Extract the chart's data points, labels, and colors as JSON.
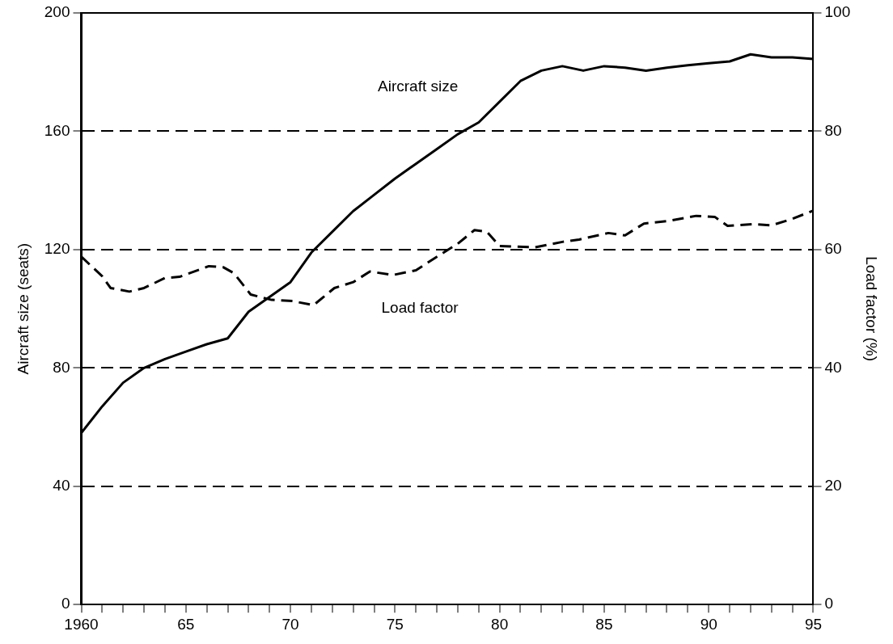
{
  "chart_data": {
    "type": "line",
    "xlabel": null,
    "ylabel": "Aircraft size (seats)",
    "y2label": "Load factor (%)",
    "xlim": [
      1960,
      1995
    ],
    "xticks": [
      {
        "value": 1960,
        "label": "1960"
      },
      {
        "value": 1961,
        "label": null
      },
      {
        "value": 1962,
        "label": null
      },
      {
        "value": 1963,
        "label": null
      },
      {
        "value": 1964,
        "label": null
      },
      {
        "value": 1965,
        "label": "65"
      },
      {
        "value": 1966,
        "label": null
      },
      {
        "value": 1967,
        "label": null
      },
      {
        "value": 1968,
        "label": null
      },
      {
        "value": 1969,
        "label": null
      },
      {
        "value": 1970,
        "label": "70"
      },
      {
        "value": 1971,
        "label": null
      },
      {
        "value": 1972,
        "label": null
      },
      {
        "value": 1973,
        "label": null
      },
      {
        "value": 1974,
        "label": null
      },
      {
        "value": 1975,
        "label": "75"
      },
      {
        "value": 1976,
        "label": null
      },
      {
        "value": 1977,
        "label": null
      },
      {
        "value": 1978,
        "label": null
      },
      {
        "value": 1979,
        "label": null
      },
      {
        "value": 1980,
        "label": "80"
      },
      {
        "value": 1981,
        "label": null
      },
      {
        "value": 1982,
        "label": null
      },
      {
        "value": 1983,
        "label": null
      },
      {
        "value": 1984,
        "label": null
      },
      {
        "value": 1985,
        "label": "85"
      },
      {
        "value": 1986,
        "label": null
      },
      {
        "value": 1987,
        "label": null
      },
      {
        "value": 1988,
        "label": null
      },
      {
        "value": 1989,
        "label": null
      },
      {
        "value": 1990,
        "label": "90"
      },
      {
        "value": 1991,
        "label": null
      },
      {
        "value": 1992,
        "label": null
      },
      {
        "value": 1993,
        "label": null
      },
      {
        "value": 1994,
        "label": null
      },
      {
        "value": 1995,
        "label": "95"
      }
    ],
    "ylim": [
      0,
      200
    ],
    "yticks": [
      0,
      40,
      80,
      120,
      160,
      200
    ],
    "y2lim": [
      0,
      100
    ],
    "y2ticks": [
      0,
      20,
      40,
      60,
      80,
      100
    ],
    "grid": "y",
    "legend": false,
    "marker": "none",
    "series": [
      {
        "name": "Aircraft size",
        "color": "#000000",
        "line_style": "solid",
        "axis": "y",
        "x": [
          1960,
          1961,
          1962,
          1963,
          1964,
          1965,
          1966,
          1967,
          1968,
          1969,
          1970,
          1971,
          1972,
          1973,
          1974,
          1975,
          1976,
          1977,
          1978,
          1979,
          1980,
          1981,
          1982,
          1983,
          1984,
          1985,
          1986,
          1987,
          1988,
          1989,
          1990,
          1991,
          1992,
          1993,
          1994,
          1995
        ],
        "values": [
          58,
          67,
          75,
          80,
          83,
          85.5,
          88,
          90,
          99,
          104,
          109,
          119,
          126,
          133,
          138.5,
          144,
          149,
          154,
          159,
          163,
          170,
          177,
          180.5,
          182,
          180.5,
          182,
          181.5,
          180.5,
          181.5,
          182.3,
          183,
          183.6,
          186,
          185,
          185,
          184.4
        ]
      },
      {
        "name": "Load factor",
        "color": "#000000",
        "line_style": "dashed",
        "axis": "y2",
        "x": [
          1960,
          1961,
          1961.4,
          1962.3,
          1963,
          1964,
          1964.7,
          1966.1,
          1966.8,
          1967.3,
          1968.1,
          1969.1,
          1970.1,
          1971.1,
          1972.1,
          1973,
          1973.8,
          1974.9,
          1976,
          1976.7,
          1978,
          1978.8,
          1979.4,
          1980,
          1981.7,
          1983,
          1983.8,
          1985.2,
          1986,
          1986.9,
          1988,
          1989.4,
          1990.3,
          1990.9,
          1992.1,
          1993,
          1994,
          1995
        ],
        "values": [
          58.8,
          55.5,
          53.5,
          52.9,
          53.5,
          55.2,
          55.4,
          57.2,
          57,
          56,
          52.4,
          51.5,
          51.3,
          50.6,
          53.5,
          54.5,
          56.3,
          55.7,
          56.5,
          58.1,
          61,
          63.3,
          63,
          60.6,
          60.4,
          61.3,
          61.7,
          62.8,
          62.4,
          64.4,
          64.8,
          65.7,
          65.5,
          64,
          64.3,
          64.1,
          65.2,
          66.6
        ]
      }
    ]
  }
}
